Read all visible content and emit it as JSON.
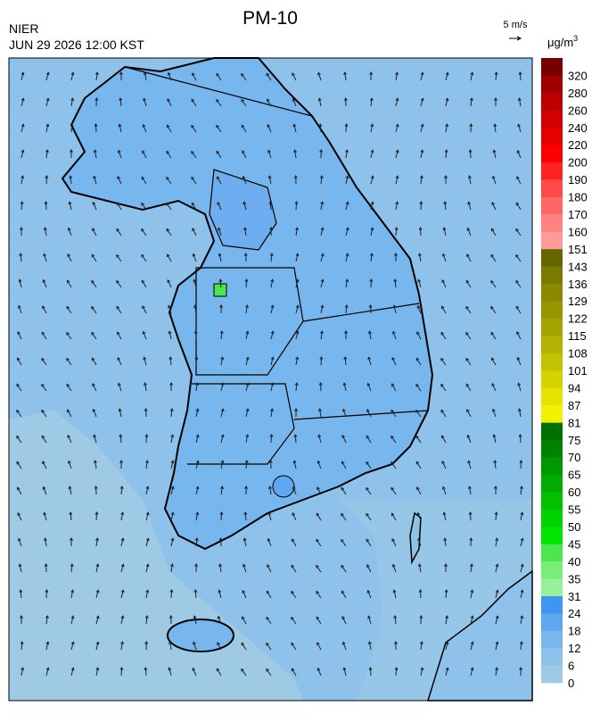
{
  "header": {
    "title": "PM-10",
    "agency": "NIER",
    "datetime": "JUN 29 2026 12:00 KST"
  },
  "wind_scale": {
    "label": "5 m/s"
  },
  "legend": {
    "unit": "μg/m",
    "unit_exponent": "3",
    "levels": [
      {
        "value": 0,
        "color": "#9ecae6"
      },
      {
        "value": 6,
        "color": "#8ec2ea"
      },
      {
        "value": 12,
        "color": "#78b6ee"
      },
      {
        "value": 18,
        "color": "#5fa8f1"
      },
      {
        "value": 24,
        "color": "#3d96f4"
      },
      {
        "value": 31,
        "color": "#98f098"
      },
      {
        "value": 35,
        "color": "#78ee78"
      },
      {
        "value": 40,
        "color": "#4ee64e"
      },
      {
        "value": 45,
        "color": "#00e600"
      },
      {
        "value": 50,
        "color": "#00d400"
      },
      {
        "value": 55,
        "color": "#00c000"
      },
      {
        "value": 60,
        "color": "#00ac00"
      },
      {
        "value": 65,
        "color": "#009800"
      },
      {
        "value": 70,
        "color": "#008400"
      },
      {
        "value": 75,
        "color": "#007000"
      },
      {
        "value": 81,
        "color": "#f2f200"
      },
      {
        "value": 87,
        "color": "#e4e400"
      },
      {
        "value": 94,
        "color": "#d4d400"
      },
      {
        "value": 101,
        "color": "#c2c200"
      },
      {
        "value": 108,
        "color": "#b2b200"
      },
      {
        "value": 115,
        "color": "#a4a400"
      },
      {
        "value": 122,
        "color": "#969600"
      },
      {
        "value": 129,
        "color": "#8a8a00"
      },
      {
        "value": 136,
        "color": "#7a7a00"
      },
      {
        "value": 143,
        "color": "#666600"
      },
      {
        "value": 151,
        "color": "#ff9a9a"
      },
      {
        "value": 160,
        "color": "#ff8282"
      },
      {
        "value": 170,
        "color": "#ff6666"
      },
      {
        "value": 180,
        "color": "#ff4848"
      },
      {
        "value": 190,
        "color": "#ff2020"
      },
      {
        "value": 200,
        "color": "#ff0000"
      },
      {
        "value": 220,
        "color": "#e80000"
      },
      {
        "value": 240,
        "color": "#d20000"
      },
      {
        "value": 260,
        "color": "#bc0000"
      },
      {
        "value": 280,
        "color": "#a00000"
      },
      {
        "value": 320,
        "color": "#780000"
      }
    ]
  }
}
